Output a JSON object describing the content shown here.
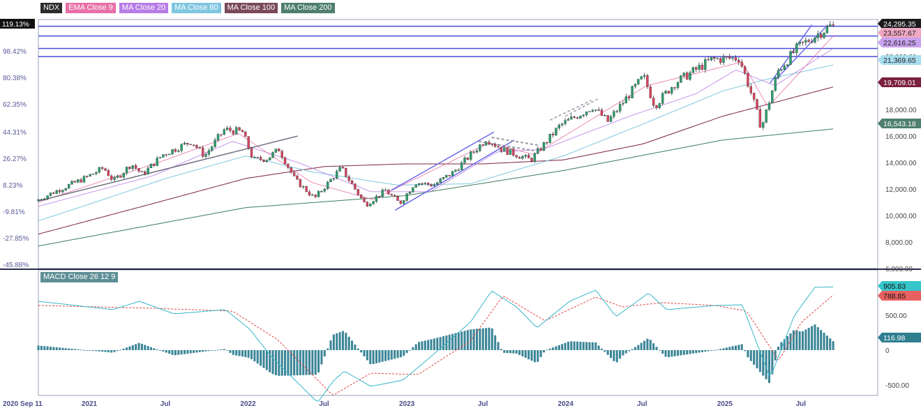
{
  "legend": [
    {
      "label": "NDX",
      "color": "#2b2b2b"
    },
    {
      "label": "EMA Close 9",
      "color": "#e86fa7"
    },
    {
      "label": "MA Close 20",
      "color": "#b77ce6"
    },
    {
      "label": "MA Close 60",
      "color": "#7fc6e0"
    },
    {
      "label": "MA Close 100",
      "color": "#7a4a5a"
    },
    {
      "label": "MA Close 200",
      "color": "#4f7f6e"
    }
  ],
  "macd_label": "MACD Close 26 12 9",
  "colors": {
    "up": "#2f9e6f",
    "down": "#d64560",
    "wick": "#333333",
    "hline": "#4a4adc",
    "trend": "#6a6ae8",
    "grey": "#9a9aa8",
    "macd": "#36b6c9",
    "signal": "#e04848",
    "hist": "#3b8597"
  },
  "chart_data": {
    "type": "line",
    "pct_ticks": [
      "119.13%",
      "98.42%",
      "80.38%",
      "62.35%",
      "44.31%",
      "26.27%",
      "8.23%",
      "-9.81%",
      "-27.85%",
      "-45.88%"
    ],
    "price_ticks": [
      22000,
      20000,
      18000,
      16000,
      14000,
      12000,
      10000,
      8000,
      6000
    ],
    "price_tick_labels": [
      "22,000.00",
      "20,000.00",
      "18,000.00",
      "16,000.00",
      "14,000.00",
      "12,000.00",
      "10,000.00",
      "8,000.00",
      "6,000.00"
    ],
    "price_range": [
      6000,
      24800
    ],
    "x_ticks": [
      "2020 Sep 11",
      "2021",
      "Jul",
      "2022",
      "Jul",
      "2023",
      "Jul",
      "2024",
      "Jul",
      "2025",
      "Jul"
    ],
    "x_tick_dates": [
      "2020-09-11",
      "2021-01-01",
      "2021-07-01",
      "2022-01-01",
      "2022-07-01",
      "2023-01-01",
      "2023-07-01",
      "2024-01-01",
      "2024-07-01",
      "2025-01-01",
      "2025-07-01"
    ],
    "date_range": [
      "2020-09-11",
      "2025-09-15"
    ],
    "close_path": [
      [
        "2020-09-11",
        11100
      ],
      [
        "2020-11-01",
        11900
      ],
      [
        "2021-01-01",
        12800
      ],
      [
        "2021-02-15",
        13600
      ],
      [
        "2021-03-10",
        12600
      ],
      [
        "2021-04-20",
        13900
      ],
      [
        "2021-05-15",
        13100
      ],
      [
        "2021-07-01",
        14600
      ],
      [
        "2021-09-05",
        15600
      ],
      [
        "2021-10-05",
        14500
      ],
      [
        "2021-11-20",
        16500
      ],
      [
        "2021-12-31",
        16300
      ],
      [
        "2022-01-25",
        14200
      ],
      [
        "2022-02-25",
        14300
      ],
      [
        "2022-03-25",
        15000
      ],
      [
        "2022-05-01",
        12700
      ],
      [
        "2022-06-15",
        11300
      ],
      [
        "2022-08-15",
        13600
      ],
      [
        "2022-10-10",
        10800
      ],
      [
        "2022-11-25",
        11900
      ],
      [
        "2022-12-28",
        10900
      ],
      [
        "2023-02-01",
        12500
      ],
      [
        "2023-03-15",
        12300
      ],
      [
        "2023-05-01",
        13300
      ],
      [
        "2023-07-15",
        15800
      ],
      [
        "2023-08-20",
        15000
      ],
      [
        "2023-10-25",
        14200
      ],
      [
        "2023-12-31",
        16800
      ],
      [
        "2024-03-15",
        18200
      ],
      [
        "2024-04-19",
        17100
      ],
      [
        "2024-07-10",
        20500
      ],
      [
        "2024-08-05",
        18300
      ],
      [
        "2024-09-20",
        20000
      ],
      [
        "2024-12-15",
        21800
      ],
      [
        "2025-02-15",
        21900
      ],
      [
        "2025-03-12",
        19500
      ],
      [
        "2025-04-07",
        16600
      ],
      [
        "2025-05-15",
        20900
      ],
      [
        "2025-06-30",
        22700
      ],
      [
        "2025-08-15",
        23700
      ],
      [
        "2025-09-12",
        24295
      ]
    ],
    "ma200_path": [
      [
        "2020-09-11",
        7700
      ],
      [
        "2021-06-01",
        9300
      ],
      [
        "2022-01-01",
        10600
      ],
      [
        "2023-01-01",
        11500
      ],
      [
        "2024-01-01",
        13400
      ],
      [
        "2025-01-01",
        15700
      ],
      [
        "2025-09-12",
        16543
      ]
    ],
    "ma100_path": [
      [
        "2020-09-11",
        8600
      ],
      [
        "2021-06-01",
        10900
      ],
      [
        "2022-01-01",
        12800
      ],
      [
        "2022-07-01",
        13700
      ],
      [
        "2023-01-01",
        13900
      ],
      [
        "2023-07-01",
        13900
      ],
      [
        "2024-01-01",
        14200
      ],
      [
        "2024-07-01",
        15400
      ],
      [
        "2025-01-01",
        17500
      ],
      [
        "2025-09-12",
        19709
      ]
    ],
    "ma60_path": [
      [
        "2020-09-11",
        9600
      ],
      [
        "2021-01-01",
        10800
      ],
      [
        "2021-07-01",
        12800
      ],
      [
        "2022-01-01",
        14500
      ],
      [
        "2022-06-01",
        13300
      ],
      [
        "2022-12-15",
        12300
      ],
      [
        "2023-06-01",
        12400
      ],
      [
        "2024-01-01",
        14500
      ],
      [
        "2024-07-01",
        16900
      ],
      [
        "2025-01-01",
        19400
      ],
      [
        "2025-04-01",
        20200
      ],
      [
        "2025-09-12",
        21370
      ]
    ],
    "ma20_path": [
      [
        "2020-09-11",
        10700
      ],
      [
        "2021-06-01",
        13000
      ],
      [
        "2021-12-01",
        15600
      ],
      [
        "2022-05-01",
        14000
      ],
      [
        "2022-10-15",
        11800
      ],
      [
        "2023-03-01",
        11800
      ],
      [
        "2023-08-01",
        14800
      ],
      [
        "2023-11-15",
        15000
      ],
      [
        "2024-06-01",
        17500
      ],
      [
        "2024-11-01",
        19200
      ],
      [
        "2025-02-01",
        21000
      ],
      [
        "2025-05-01",
        19800
      ],
      [
        "2025-09-12",
        22616
      ]
    ],
    "ema9_path": [
      [
        "2020-09-11",
        11000
      ],
      [
        "2021-07-01",
        14200
      ],
      [
        "2021-12-15",
        16200
      ],
      [
        "2022-06-01",
        12500
      ],
      [
        "2022-10-20",
        11200
      ],
      [
        "2023-07-15",
        15500
      ],
      [
        "2023-10-25",
        14600
      ],
      [
        "2024-07-10",
        19800
      ],
      [
        "2025-02-15",
        21600
      ],
      [
        "2025-04-15",
        18200
      ],
      [
        "2025-09-12",
        23558
      ]
    ],
    "hlines": [
      24295.35,
      23557.67,
      22616.25,
      22000
    ],
    "series_labels": [
      {
        "value": 24295.35,
        "label": "24,295.35",
        "color": "#1a1a1a"
      },
      {
        "value": 23557.67,
        "label": "23,557.67",
        "color": "#f0a8c4"
      },
      {
        "value": 22616.25,
        "label": "22,616.25",
        "color": "#c9a2ef"
      },
      {
        "value": 21369.65,
        "label": "21,369.65",
        "color": "#a8dcef"
      },
      {
        "value": 19709.01,
        "label": "19,709.01",
        "color": "#7a2040"
      },
      {
        "value": 16543.18,
        "label": "16,543.18",
        "color": "#4f7f6e"
      }
    ],
    "macd": {
      "range": [
        -650,
        1150
      ],
      "ticks": [
        500,
        0,
        -500
      ],
      "tick_labels": [
        "500.00",
        "0",
        "-500.00"
      ],
      "macd_path": [
        [
          "2020-09-11",
          700
        ],
        [
          "2021-03-01",
          580
        ],
        [
          "2021-05-01",
          700
        ],
        [
          "2021-07-20",
          520
        ],
        [
          "2021-11-15",
          580
        ],
        [
          "2022-01-10",
          300
        ],
        [
          "2022-03-01",
          -100
        ],
        [
          "2022-06-15",
          -750
        ],
        [
          "2022-07-20",
          -450
        ],
        [
          "2022-08-15",
          -300
        ],
        [
          "2022-10-15",
          -520
        ],
        [
          "2022-12-28",
          -430
        ],
        [
          "2023-03-01",
          -100
        ],
        [
          "2023-06-01",
          400
        ],
        [
          "2023-07-20",
          850
        ],
        [
          "2023-09-15",
          620
        ],
        [
          "2023-11-01",
          320
        ],
        [
          "2024-01-15",
          700
        ],
        [
          "2024-03-15",
          860
        ],
        [
          "2024-05-01",
          480
        ],
        [
          "2024-07-15",
          820
        ],
        [
          "2024-08-25",
          580
        ],
        [
          "2024-12-15",
          640
        ],
        [
          "2025-02-15",
          650
        ],
        [
          "2025-04-20",
          -400
        ],
        [
          "2025-06-15",
          500
        ],
        [
          "2025-08-01",
          900
        ],
        [
          "2025-09-12",
          906
        ]
      ],
      "signal_path": [
        [
          "2020-09-11",
          640
        ],
        [
          "2021-06-01",
          600
        ],
        [
          "2021-12-01",
          560
        ],
        [
          "2022-03-15",
          150
        ],
        [
          "2022-07-20",
          -650
        ],
        [
          "2022-10-15",
          -330
        ],
        [
          "2023-02-01",
          -350
        ],
        [
          "2023-06-01",
          130
        ],
        [
          "2023-08-15",
          780
        ],
        [
          "2023-11-20",
          420
        ],
        [
          "2024-03-15",
          760
        ],
        [
          "2024-05-15",
          620
        ],
        [
          "2024-08-15",
          680
        ],
        [
          "2024-12-15",
          640
        ],
        [
          "2025-02-25",
          560
        ],
        [
          "2025-05-10",
          -150
        ],
        [
          "2025-07-01",
          400
        ],
        [
          "2025-09-12",
          789
        ]
      ],
      "last_labels": [
        {
          "value": 905.83,
          "label": "905.83",
          "color": "#36c6c9"
        },
        {
          "value": 788.85,
          "label": "788.85",
          "color": "#e86060"
        },
        {
          "value": 116.98,
          "label": "116.98",
          "color": "#2f7f8f"
        }
      ]
    }
  }
}
